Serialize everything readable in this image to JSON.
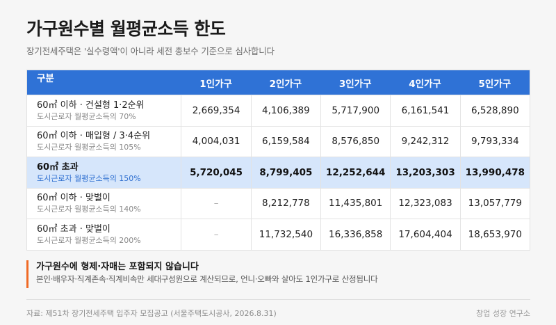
{
  "title": "가구원수별 월평균소득 한도",
  "subtitle": "장기전세주택은 '실수령액'이 아니라 세전 총보수 기준으로 심사합니다",
  "table": {
    "headers": [
      "구분",
      "1인가구",
      "2인가구",
      "3인가구",
      "4인가구",
      "5인가구"
    ],
    "rows": [
      {
        "label": "60㎡ 이하 · 건설형 1·2순위",
        "sub": "도시근로자 월평균소득의 70%",
        "values": [
          "2,669,354",
          "4,106,389",
          "5,717,900",
          "6,161,541",
          "6,528,890"
        ]
      },
      {
        "label": "60㎡ 이하 · 매입형 / 3·4순위",
        "sub": "도시근로자 월평균소득의 105%",
        "values": [
          "4,004,031",
          "6,159,584",
          "8,576,850",
          "9,242,312",
          "9,793,334"
        ]
      },
      {
        "label": "60㎡ 초과",
        "sub": "도시근로자 월평균소득의 150%",
        "values": [
          "5,720,045",
          "8,799,405",
          "12,252,644",
          "13,203,303",
          "13,990,478"
        ]
      },
      {
        "label": "60㎡ 이하 · 맞벌이",
        "sub": "도시근로자 월평균소득의 140%",
        "values": [
          "–",
          "8,212,778",
          "11,435,801",
          "12,323,083",
          "13,057,779"
        ]
      },
      {
        "label": "60㎡ 초과 · 맞벌이",
        "sub": "도시근로자 월평균소득의 200%",
        "values": [
          "–",
          "11,732,540",
          "16,336,858",
          "17,604,404",
          "18,653,970"
        ]
      }
    ]
  },
  "note": {
    "title": "가구원수에 형제·자매는 포함되지 않습니다",
    "body": "본인·배우자·직계존속·직계비속만 세대구성원으로 계산되므로, 언니·오빠와 살아도 1인가구로 산정됩니다"
  },
  "footer": {
    "source": "자료: 제51차 장기전세주택 입주자 모집공고 (서울주택도시공사, 2026.8.31)",
    "brand": "창업 성장 연구소"
  },
  "colors": {
    "header": "#2f72d6",
    "highlight": "#d6e6fb",
    "accent": "#f06a25"
  }
}
